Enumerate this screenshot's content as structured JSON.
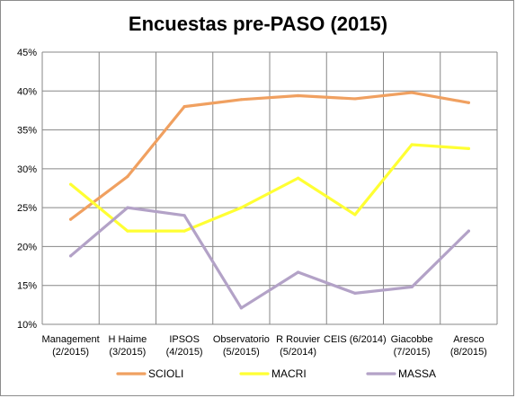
{
  "chart_data": {
    "type": "line",
    "title": "Encuestas pre-PASO (2015)",
    "xlabel": "",
    "ylabel": "",
    "ylim": [
      0.1,
      0.45
    ],
    "yticks": [
      "10%",
      "15%",
      "20%",
      "25%",
      "30%",
      "35%",
      "40%",
      "45%"
    ],
    "categories": [
      [
        "Management",
        "(2/2015)"
      ],
      [
        "H Haime",
        "(3/2015)"
      ],
      [
        "IPSOS",
        "(4/2015)"
      ],
      [
        "Observatorio",
        "(5/2015)"
      ],
      [
        "R Rouvier",
        "(5/2014)"
      ],
      [
        "CEIS (6/2014)",
        ""
      ],
      [
        "Giacobbe",
        "(7/2015)"
      ],
      [
        "Aresco",
        "(8/2015)"
      ]
    ],
    "series": [
      {
        "name": "SCIOLI",
        "color": "#F0A060",
        "values": [
          0.235,
          0.29,
          0.38,
          0.389,
          0.394,
          0.39,
          0.398,
          0.385
        ]
      },
      {
        "name": "MACRI",
        "color": "#FFFF33",
        "values": [
          0.28,
          0.22,
          0.22,
          0.25,
          0.288,
          0.241,
          0.331,
          0.326
        ]
      },
      {
        "name": "MASSA",
        "color": "#B3A2C7",
        "values": [
          0.188,
          0.25,
          0.24,
          0.121,
          0.167,
          0.14,
          0.148,
          0.22
        ]
      }
    ],
    "grid": true,
    "legend_position": "bottom"
  }
}
